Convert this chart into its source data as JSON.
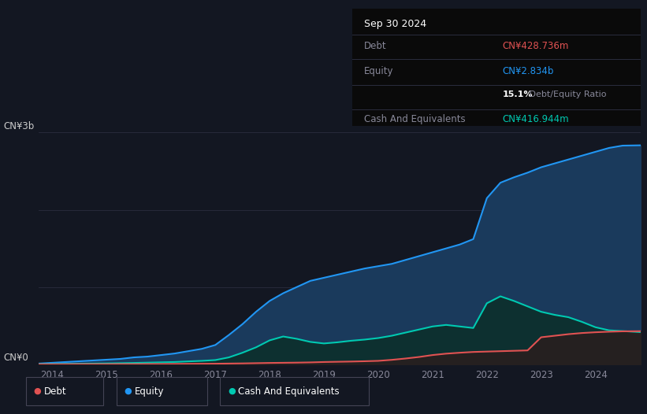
{
  "background_color": "#131722",
  "plot_bg_color": "#131722",
  "title_box": {
    "date": "Sep 30 2024",
    "debt_label": "Debt",
    "debt_value": "CN¥428.736m",
    "debt_color": "#e05252",
    "equity_label": "Equity",
    "equity_value": "CN¥2.834b",
    "equity_color": "#2196f3",
    "ratio_value": "15.1%",
    "ratio_text": " Debt/Equity Ratio",
    "cash_label": "Cash And Equivalents",
    "cash_value": "CN¥416.944m",
    "cash_color": "#00c9b1"
  },
  "ylabel_top": "CN¥3b",
  "ylabel_bottom": "CN¥0",
  "x_ticks": [
    2014,
    2015,
    2016,
    2017,
    2018,
    2019,
    2020,
    2021,
    2022,
    2023,
    2024
  ],
  "legend": [
    {
      "label": "Debt",
      "color": "#e05252"
    },
    {
      "label": "Equity",
      "color": "#2196f3"
    },
    {
      "label": "Cash And Equivalents",
      "color": "#00c9b1"
    }
  ],
  "years": [
    2013.75,
    2014.0,
    2014.25,
    2014.5,
    2014.75,
    2015.0,
    2015.25,
    2015.5,
    2015.75,
    2016.0,
    2016.25,
    2016.5,
    2016.75,
    2017.0,
    2017.25,
    2017.5,
    2017.75,
    2018.0,
    2018.25,
    2018.5,
    2018.75,
    2019.0,
    2019.25,
    2019.5,
    2019.75,
    2020.0,
    2020.25,
    2020.5,
    2020.75,
    2021.0,
    2021.25,
    2021.5,
    2021.75,
    2022.0,
    2022.25,
    2022.5,
    2022.75,
    2023.0,
    2023.25,
    2023.5,
    2023.75,
    2024.0,
    2024.25,
    2024.5,
    2024.83
  ],
  "equity": [
    0.01,
    0.02,
    0.03,
    0.04,
    0.05,
    0.06,
    0.07,
    0.09,
    0.1,
    0.12,
    0.14,
    0.17,
    0.2,
    0.25,
    0.38,
    0.52,
    0.68,
    0.82,
    0.92,
    1.0,
    1.08,
    1.12,
    1.16,
    1.2,
    1.24,
    1.27,
    1.3,
    1.35,
    1.4,
    1.45,
    1.5,
    1.55,
    1.62,
    2.15,
    2.35,
    2.42,
    2.48,
    2.55,
    2.6,
    2.65,
    2.7,
    2.75,
    2.8,
    2.83,
    2.834
  ],
  "cash": [
    0.003,
    0.004,
    0.006,
    0.008,
    0.01,
    0.012,
    0.015,
    0.018,
    0.022,
    0.026,
    0.03,
    0.038,
    0.045,
    0.055,
    0.09,
    0.15,
    0.22,
    0.31,
    0.36,
    0.33,
    0.29,
    0.27,
    0.285,
    0.305,
    0.32,
    0.34,
    0.37,
    0.41,
    0.45,
    0.49,
    0.51,
    0.49,
    0.47,
    0.79,
    0.88,
    0.82,
    0.75,
    0.68,
    0.64,
    0.61,
    0.55,
    0.48,
    0.44,
    0.43,
    0.417
  ],
  "debt": [
    0.001,
    0.001,
    0.001,
    0.002,
    0.002,
    0.002,
    0.003,
    0.003,
    0.004,
    0.004,
    0.005,
    0.006,
    0.007,
    0.008,
    0.01,
    0.012,
    0.015,
    0.018,
    0.02,
    0.022,
    0.025,
    0.03,
    0.033,
    0.036,
    0.04,
    0.045,
    0.058,
    0.075,
    0.095,
    0.12,
    0.138,
    0.15,
    0.16,
    0.165,
    0.17,
    0.175,
    0.18,
    0.35,
    0.37,
    0.39,
    0.405,
    0.415,
    0.422,
    0.427,
    0.429
  ]
}
